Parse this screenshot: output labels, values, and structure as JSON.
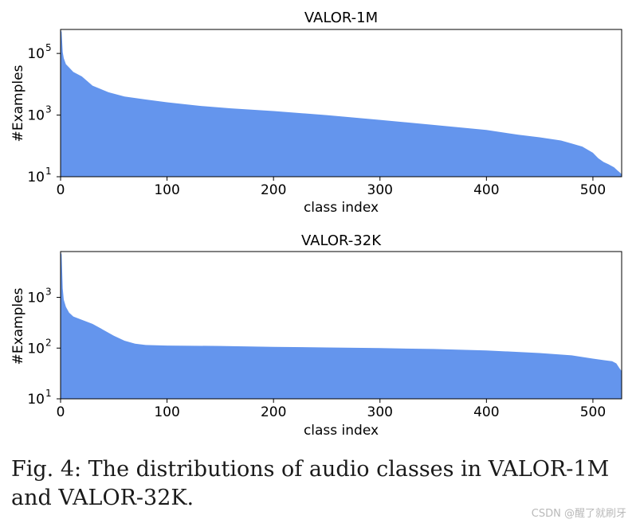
{
  "chart_data": [
    {
      "type": "area",
      "title": "VALOR-1M",
      "xlabel": "class index",
      "ylabel": "#Examples",
      "yscale": "log",
      "xlim": [
        0,
        527
      ],
      "ylim": [
        10,
        600000
      ],
      "xticks": [
        0,
        100,
        200,
        300,
        400,
        500
      ],
      "xtick_labels": [
        "0",
        "100",
        "200",
        "300",
        "400",
        "500"
      ],
      "yticks": [
        10,
        1000,
        100000
      ],
      "ytick_labels": [
        {
          "base": "10",
          "exp": "1"
        },
        {
          "base": "10",
          "exp": "3"
        },
        {
          "base": "10",
          "exp": "5"
        }
      ],
      "x": [
        0,
        1,
        2,
        3,
        5,
        8,
        12,
        20,
        30,
        45,
        60,
        80,
        100,
        130,
        160,
        200,
        250,
        300,
        350,
        400,
        430,
        450,
        470,
        480,
        490,
        500,
        505,
        510,
        515,
        520,
        523,
        525,
        527
      ],
      "values": [
        600000,
        500000,
        110000,
        70000,
        45000,
        35000,
        25000,
        18000,
        9000,
        5500,
        4000,
        3200,
        2600,
        2000,
        1650,
        1350,
        1000,
        700,
        480,
        330,
        230,
        190,
        150,
        120,
        95,
        60,
        40,
        30,
        25,
        20,
        16,
        14,
        12
      ],
      "color": "#6495ed"
    },
    {
      "type": "area",
      "title": "VALOR-32K",
      "xlabel": "class index",
      "ylabel": "#Examples",
      "yscale": "log",
      "xlim": [
        0,
        527
      ],
      "ylim": [
        10,
        8000
      ],
      "xticks": [
        0,
        100,
        200,
        300,
        400,
        500
      ],
      "xtick_labels": [
        "0",
        "100",
        "200",
        "300",
        "400",
        "500"
      ],
      "yticks": [
        10,
        100,
        1000
      ],
      "ytick_labels": [
        {
          "base": "10",
          "exp": "1"
        },
        {
          "base": "10",
          "exp": "2"
        },
        {
          "base": "10",
          "exp": "3"
        }
      ],
      "x": [
        0,
        1,
        2,
        3,
        5,
        8,
        12,
        20,
        30,
        40,
        50,
        60,
        70,
        80,
        100,
        150,
        200,
        250,
        300,
        350,
        400,
        450,
        480,
        500,
        510,
        518,
        522,
        525,
        527
      ],
      "values": [
        8000,
        7000,
        1500,
        900,
        650,
        500,
        420,
        360,
        300,
        230,
        175,
        140,
        122,
        115,
        112,
        110,
        106,
        103,
        100,
        96,
        90,
        80,
        72,
        62,
        58,
        55,
        50,
        40,
        35
      ],
      "color": "#6495ed"
    }
  ],
  "caption": "Fig. 4: The distributions of audio classes in VALOR-1M and VALOR-32K.",
  "watermark": "CSDN @醒了就刷牙"
}
